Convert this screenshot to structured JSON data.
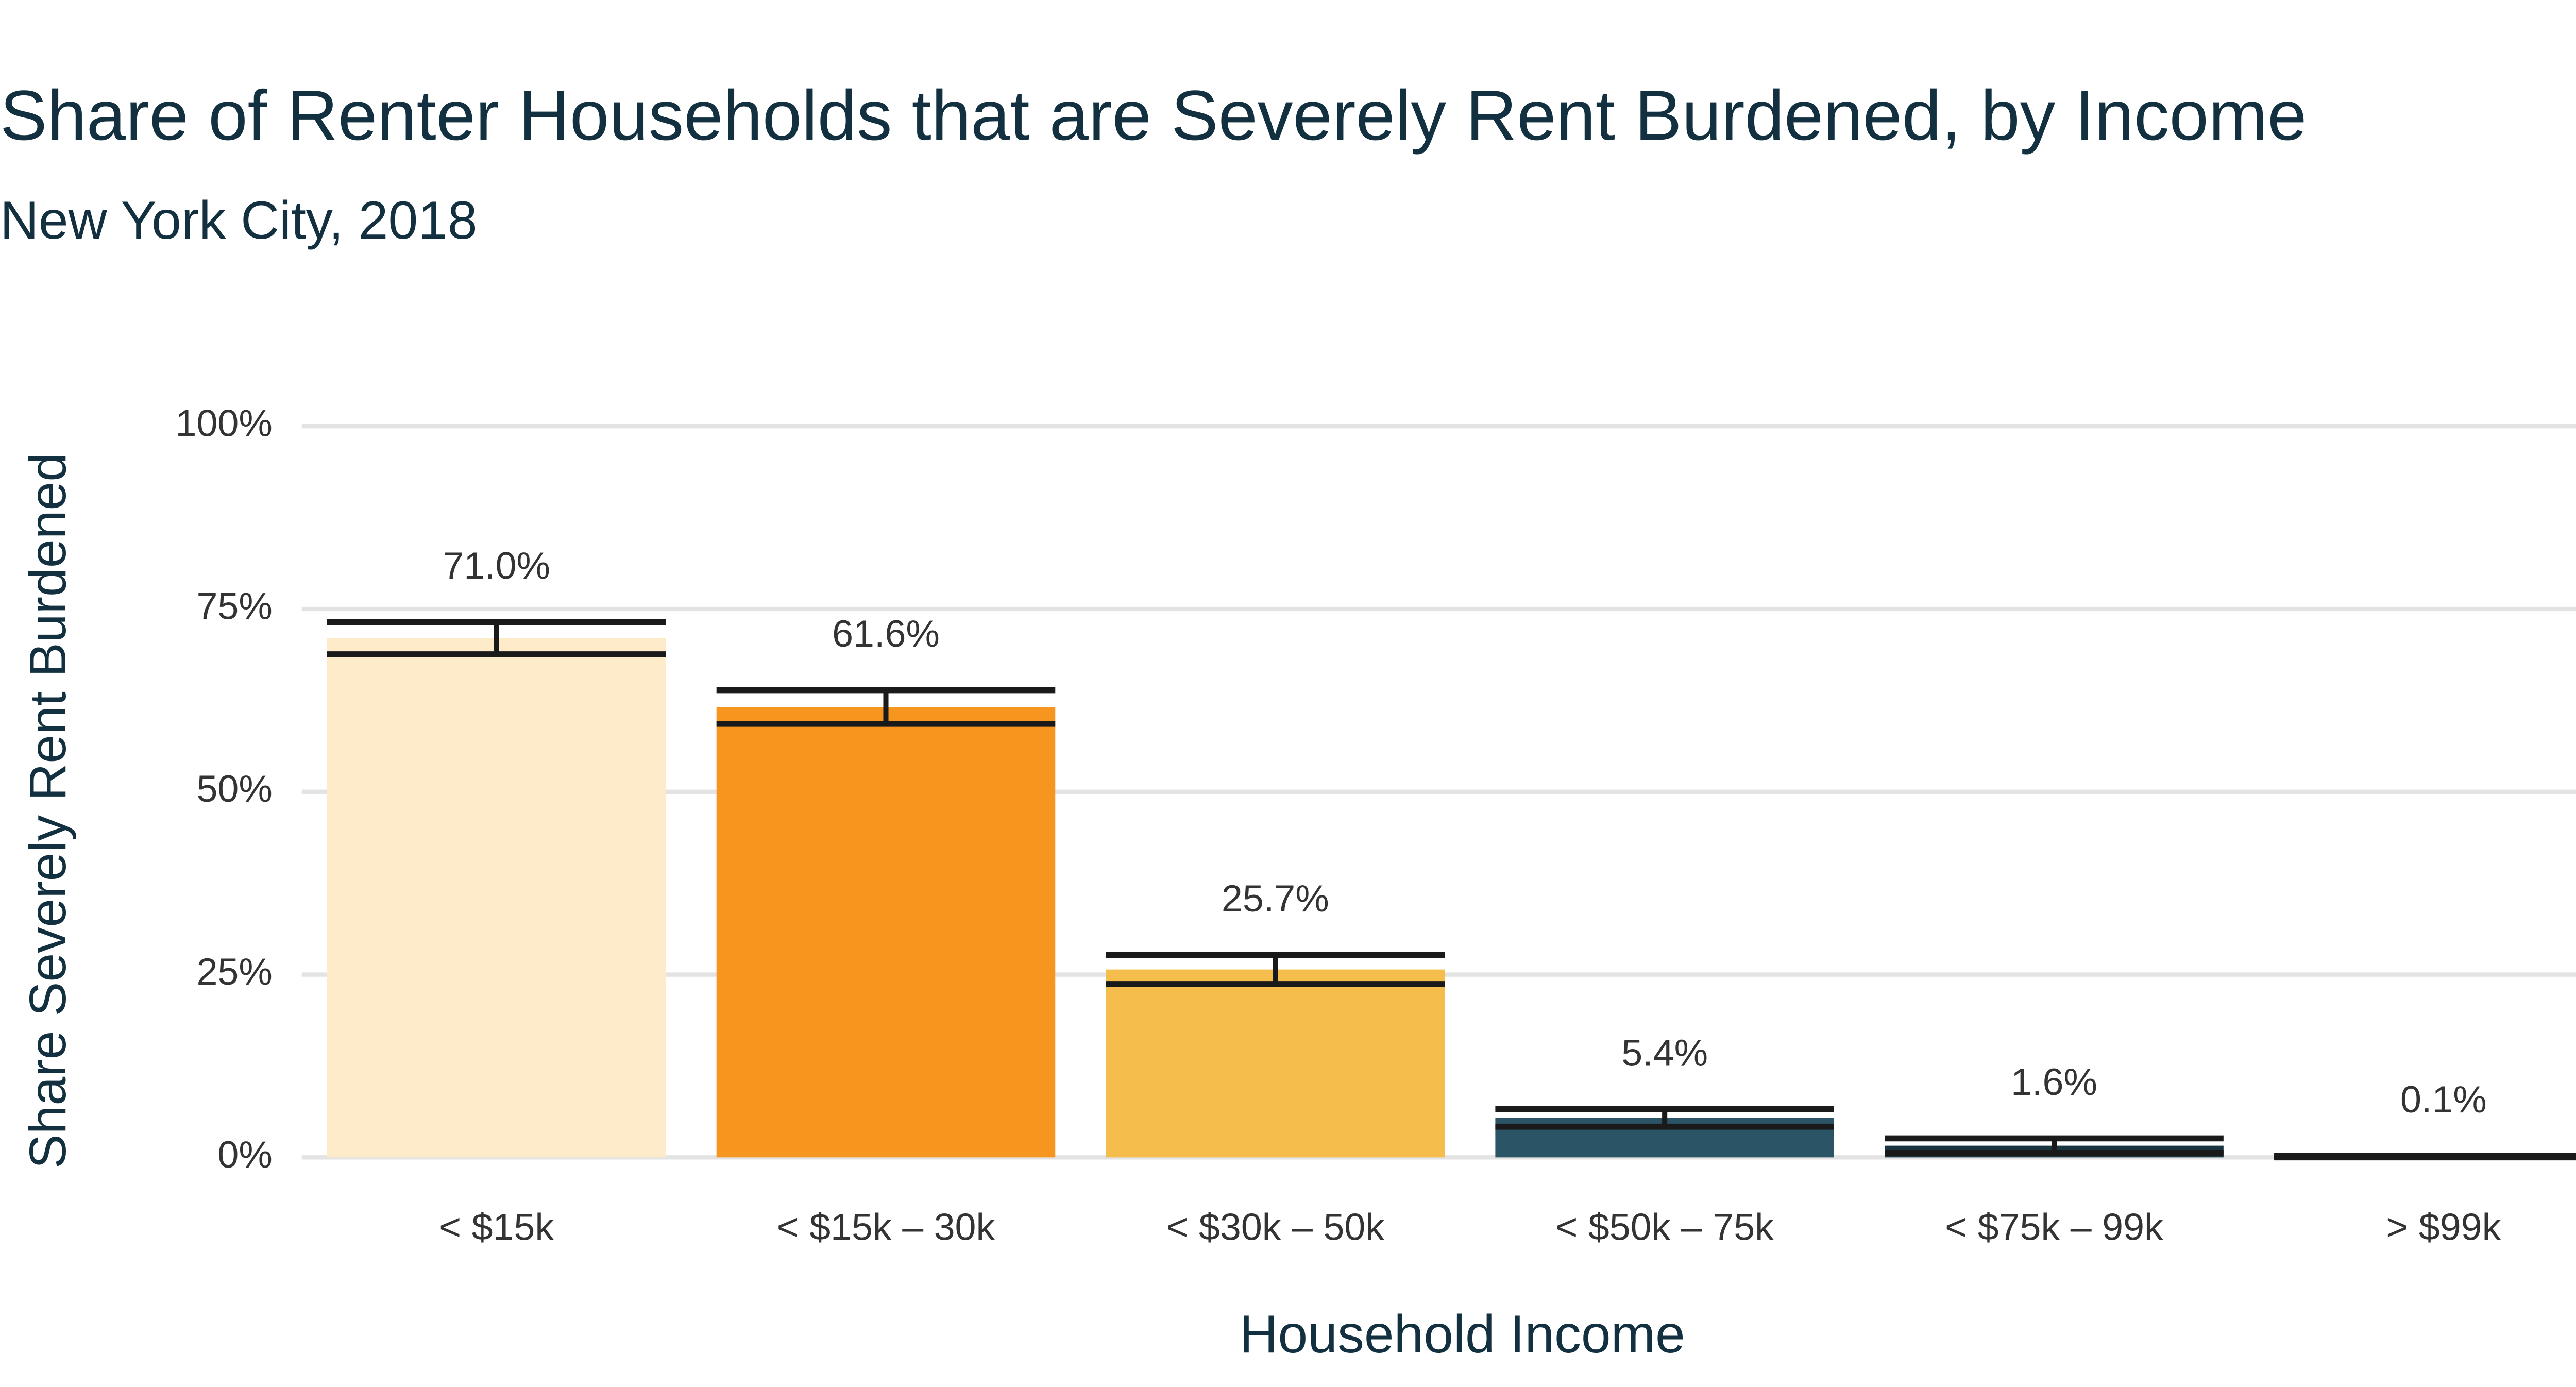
{
  "chart_data": {
    "type": "bar",
    "title": "Share of Renter Households that are Severely Rent Burdened, by Income",
    "subtitle": "New York City, 2018",
    "x_label": "Household Income",
    "y_label": "Share Severely Rent Burdened",
    "categories": [
      "< $15k",
      "< $15k – 30k",
      "< $30k – 50k",
      "< $50k – 75k",
      "< $75k – 99k",
      "> $99k"
    ],
    "values": [
      71.0,
      61.6,
      25.7,
      5.4,
      1.6,
      0.1
    ],
    "value_labels": [
      "71.0%",
      "61.6%",
      "25.7%",
      "5.4%",
      "1.6%",
      "0.1%"
    ],
    "errors": [
      2.2,
      2.3,
      2.0,
      1.2,
      1.0,
      0.1
    ],
    "colors": [
      "#fdebc9",
      "#f7961f",
      "#f5bd4b",
      "#2b5466",
      "#1a3540",
      "#1a3540"
    ],
    "ylim": [
      0,
      100
    ],
    "yticks": [
      {
        "value": 0,
        "label": "0%"
      },
      {
        "value": 25,
        "label": "25%"
      },
      {
        "value": 50,
        "label": "50%"
      },
      {
        "value": 75,
        "label": "75%"
      },
      {
        "value": 100,
        "label": "100%"
      }
    ],
    "grid": true
  }
}
